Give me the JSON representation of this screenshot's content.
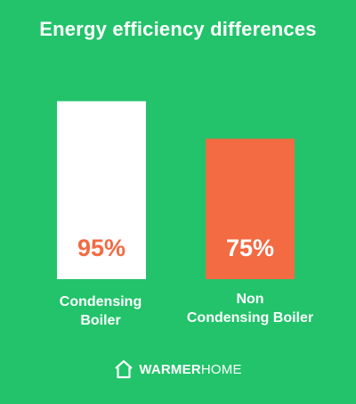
{
  "chart_data": {
    "type": "bar",
    "title": "Energy efficiency differences",
    "categories": [
      [
        "Condensing",
        "Boiler"
      ],
      [
        "Non",
        "Condensing Boiler"
      ]
    ],
    "values": [
      95,
      75
    ],
    "value_labels": [
      "95%",
      "75%"
    ],
    "ylim": [
      0,
      100
    ],
    "bar_colors": [
      "#ffffff",
      "#f26b43"
    ],
    "label_colors": [
      "#f26b43",
      "#ffffff"
    ],
    "grid": false,
    "legend": "none"
  },
  "colors": {
    "background": "#22c36a",
    "accent": "#f26b43",
    "text": "#ffffff"
  },
  "logo": {
    "bold": "WARMER",
    "light": "HOME",
    "icon": "house-icon"
  }
}
